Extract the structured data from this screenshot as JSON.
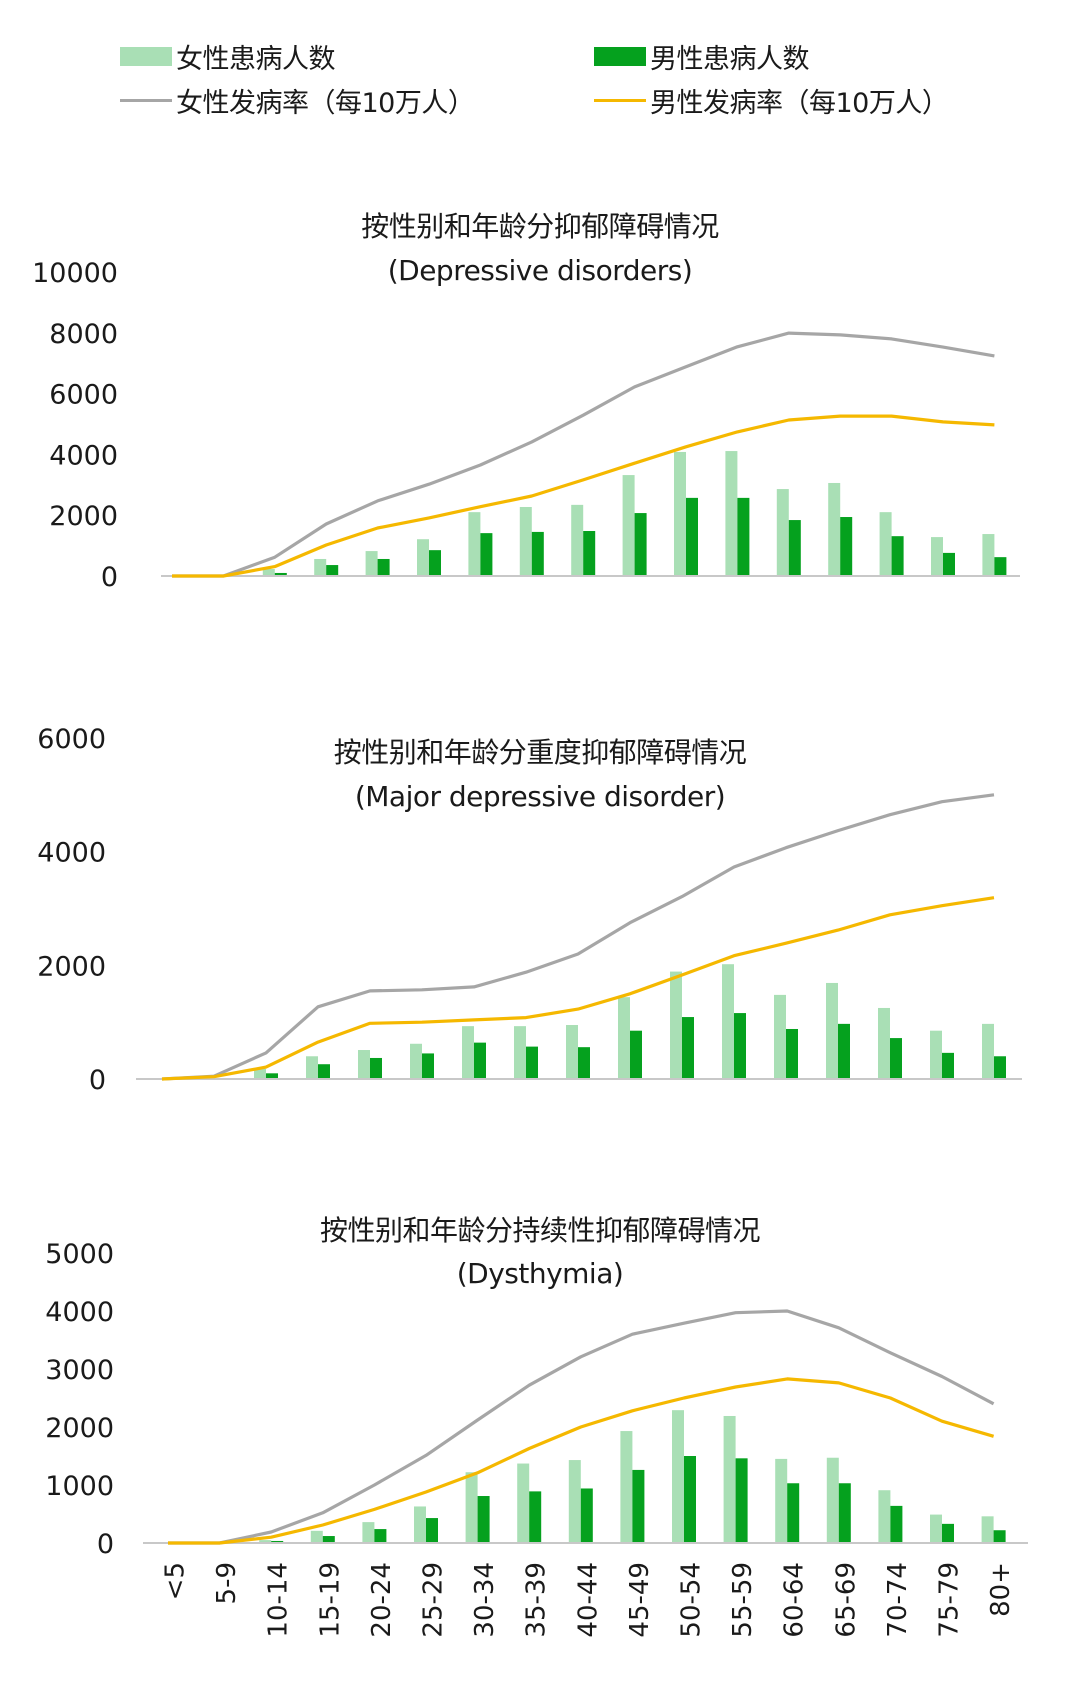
{
  "legend": {
    "female_count": {
      "label": "女性患病人数",
      "color": "#A9DFB5"
    },
    "male_count": {
      "label": "男性患病人数",
      "color": "#05A11E"
    },
    "female_rate": {
      "label": "女性发病率（每10万人）",
      "color": "#A6A6A6"
    },
    "male_rate": {
      "label": "男性发病率（每10万人）",
      "color": "#F5B800"
    }
  },
  "colors": {
    "female_bar": "#A9DFB5",
    "male_bar": "#05A11E",
    "female_line": "#A6A6A6",
    "male_line": "#F5B800",
    "axis": "#C8C8C8",
    "text": "#1a1a1a"
  },
  "chart_data": [
    {
      "type": "bar+line",
      "title": "按性别和年龄分抑郁障碍情况",
      "subtitle": "(Depressive disorders)",
      "categories": [
        "<5",
        "5-9",
        "10-14",
        "15-19",
        "20-24",
        "25-29",
        "30-34",
        "35-39",
        "40-44",
        "45-49",
        "50-54",
        "55-59",
        "60-64",
        "65-69",
        "70-74",
        "75-79",
        "80+"
      ],
      "yticks": [
        0,
        2000,
        4000,
        6000,
        8000,
        10000
      ],
      "ylim": [
        0,
        10000
      ],
      "series": [
        {
          "name": "女性患病人数",
          "kind": "bar",
          "values": [
            0,
            0,
            230,
            560,
            820,
            1210,
            2100,
            2270,
            2340,
            3320,
            4080,
            4110,
            2860,
            3060,
            2100,
            1280,
            1380
          ]
        },
        {
          "name": "男性患病人数",
          "kind": "bar",
          "values": [
            0,
            0,
            100,
            360,
            560,
            850,
            1410,
            1450,
            1480,
            2070,
            2570,
            2570,
            1840,
            1940,
            1310,
            760,
            620
          ]
        },
        {
          "name": "女性发病率（每10万人）",
          "kind": "line",
          "values": [
            0,
            0,
            620,
            1710,
            2470,
            3020,
            3650,
            4410,
            5290,
            6220,
            6880,
            7540,
            7990,
            7930,
            7800,
            7530,
            7240
          ]
        },
        {
          "name": "男性发病率（每10万人）",
          "kind": "line",
          "values": [
            0,
            0,
            310,
            1020,
            1580,
            1910,
            2280,
            2630,
            3160,
            3710,
            4250,
            4740,
            5130,
            5260,
            5260,
            5070,
            4970
          ]
        }
      ]
    },
    {
      "type": "bar+line",
      "title": "按性别和年龄分重度抑郁障碍情况",
      "subtitle": "(Major depressive disorder)",
      "categories": [
        "<5",
        "5-9",
        "10-14",
        "15-19",
        "20-24",
        "25-29",
        "30-34",
        "35-39",
        "40-44",
        "45-49",
        "50-54",
        "55-59",
        "60-64",
        "65-69",
        "70-74",
        "75-79",
        "80+"
      ],
      "yticks": [
        0,
        2000,
        4000,
        6000
      ],
      "ylim": [
        0,
        6000
      ],
      "series": [
        {
          "name": "女性患病人数",
          "kind": "bar",
          "values": [
            0,
            20,
            180,
            400,
            510,
            620,
            930,
            930,
            950,
            1440,
            1890,
            2020,
            1480,
            1690,
            1250,
            850,
            970
          ]
        },
        {
          "name": "男性患病人数",
          "kind": "bar",
          "values": [
            0,
            10,
            100,
            260,
            370,
            450,
            640,
            570,
            560,
            850,
            1090,
            1160,
            880,
            970,
            720,
            460,
            400
          ]
        },
        {
          "name": "女性发病率（每10万人）",
          "kind": "line",
          "values": [
            0,
            50,
            460,
            1270,
            1550,
            1570,
            1620,
            1880,
            2200,
            2750,
            3210,
            3730,
            4070,
            4370,
            4650,
            4880,
            5000
          ]
        },
        {
          "name": "男性发病率（每10万人）",
          "kind": "line",
          "values": [
            0,
            40,
            210,
            650,
            980,
            1000,
            1040,
            1080,
            1230,
            1500,
            1830,
            2170,
            2390,
            2620,
            2890,
            3050,
            3190
          ]
        }
      ]
    },
    {
      "type": "bar+line",
      "title": "按性别和年龄分持续性抑郁障碍情况",
      "subtitle": "(Dysthymia)",
      "categories": [
        "<5",
        "5-9",
        "10-14",
        "15-19",
        "20-24",
        "25-29",
        "30-34",
        "35-39",
        "40-44",
        "45-49",
        "50-54",
        "55-59",
        "60-64",
        "65-69",
        "70-74",
        "75-79",
        "80+"
      ],
      "yticks": [
        0,
        1000,
        2000,
        3000,
        4000,
        5000
      ],
      "ylim": [
        0,
        5000
      ],
      "series": [
        {
          "name": "女性患病人数",
          "kind": "bar",
          "values": [
            0,
            0,
            50,
            210,
            360,
            630,
            1220,
            1370,
            1430,
            1930,
            2290,
            2190,
            1450,
            1470,
            910,
            490,
            460
          ]
        },
        {
          "name": "男性患病人数",
          "kind": "bar",
          "values": [
            0,
            0,
            35,
            120,
            240,
            430,
            810,
            890,
            940,
            1260,
            1500,
            1460,
            1030,
            1030,
            640,
            330,
            220
          ]
        },
        {
          "name": "女性发病率（每10万人）",
          "kind": "line",
          "values": [
            0,
            0,
            190,
            520,
            1000,
            1510,
            2120,
            2720,
            3210,
            3600,
            3790,
            3970,
            4000,
            3710,
            3280,
            2870,
            2400
          ]
        },
        {
          "name": "男性发病率（每10万人）",
          "kind": "line",
          "values": [
            0,
            0,
            100,
            310,
            580,
            880,
            1210,
            1630,
            2000,
            2280,
            2500,
            2690,
            2830,
            2760,
            2500,
            2100,
            1840
          ]
        }
      ]
    }
  ]
}
